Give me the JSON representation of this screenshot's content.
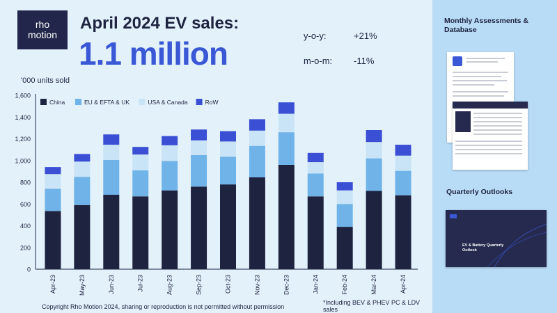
{
  "brand": {
    "logo_line1": "rho",
    "logo_line2": "motion"
  },
  "headline": "April 2024 EV sales:",
  "big_number": "1.1 million",
  "stats": {
    "yoy_label": "y-o-y:",
    "yoy_value": "+21%",
    "mom_label": "m-o-m:",
    "mom_value": "-11%"
  },
  "colors": {
    "china": "#1e2340",
    "eu": "#6fb3e8",
    "usa": "#c9e4f6",
    "row": "#3a4fd4",
    "accent": "#3a58d6"
  },
  "chart_data": {
    "type": "bar",
    "stacked": true,
    "title": "",
    "ylabel": "'000 units sold",
    "xlabel": "",
    "ylim": [
      0,
      1600
    ],
    "yticks": [
      "0",
      "200",
      "400",
      "600",
      "800",
      "1,000",
      "1,200",
      "1,400",
      "1,600"
    ],
    "categories": [
      "Apr-23",
      "May-23",
      "Jun-23",
      "Jul-23",
      "Aug-23",
      "Sep-23",
      "Oct-23",
      "Nov-23",
      "Dec-23",
      "Jan-24",
      "Feb-24",
      "Mar-24",
      "Apr-24"
    ],
    "series": [
      {
        "name": "China",
        "values": [
          535,
          590,
          685,
          670,
          725,
          760,
          780,
          845,
          960,
          670,
          390,
          720,
          680
        ]
      },
      {
        "name": "EU & EFTA & UK",
        "values": [
          205,
          260,
          320,
          240,
          270,
          290,
          255,
          290,
          300,
          210,
          210,
          300,
          225
        ]
      },
      {
        "name": "USA & Canada",
        "values": [
          135,
          140,
          140,
          145,
          145,
          135,
          140,
          140,
          170,
          105,
          125,
          150,
          140
        ]
      },
      {
        "name": "RoW",
        "values": [
          65,
          70,
          95,
          70,
          85,
          100,
          95,
          105,
          105,
          85,
          75,
          110,
          100
        ]
      }
    ],
    "legend_position": "top-left",
    "grid": true
  },
  "footer": "Copyright Rho Motion 2024, sharing or reproduction is not permitted without permission",
  "note": "*Including BEV & PHEV PC & LDV sales",
  "side": {
    "section1_title": "Monthly Assessments & Database",
    "section2_title": "Quarterly Outlooks",
    "outlook_card_title": "EV & Battery Quarterly Outlook"
  }
}
